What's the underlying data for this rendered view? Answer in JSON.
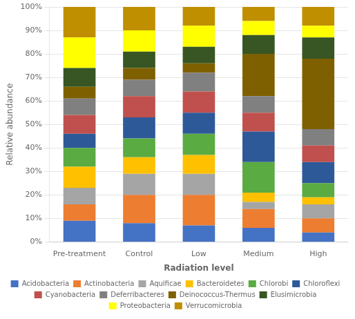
{
  "chart_data": {
    "type": "bar",
    "stacked": true,
    "categories": [
      "Pre-treatment",
      "Control",
      "Low",
      "Medium",
      "High"
    ],
    "series": [
      {
        "name": "Acidobacteria",
        "color": "#4472C4",
        "values": [
          9,
          8,
          7,
          6,
          4
        ]
      },
      {
        "name": "Actinobacteria",
        "color": "#ED7D31",
        "values": [
          7,
          12,
          13,
          8,
          6
        ]
      },
      {
        "name": "Aquificae",
        "color": "#A5A5A5",
        "values": [
          7,
          9,
          9,
          3,
          6
        ]
      },
      {
        "name": "Bacteroidetes",
        "color": "#FFC000",
        "values": [
          9,
          7,
          8,
          4,
          3
        ]
      },
      {
        "name": "Chlorobi",
        "color": "#5AAB42",
        "values": [
          8,
          8,
          9,
          13,
          6
        ]
      },
      {
        "name": "Chloroflexi",
        "color": "#2E5999",
        "values": [
          6,
          9,
          9,
          13,
          9
        ]
      },
      {
        "name": "Cyanobacteria",
        "color": "#C0504D",
        "values": [
          8,
          9,
          9,
          8,
          7
        ]
      },
      {
        "name": "Deferribacteres",
        "color": "#808080",
        "values": [
          7,
          7,
          8,
          7,
          7
        ]
      },
      {
        "name": "Deinococcus-Thermus",
        "color": "#7F6000",
        "values": [
          5,
          5,
          4,
          18,
          30
        ]
      },
      {
        "name": "Elusimicrobia",
        "color": "#375623",
        "values": [
          8,
          7,
          7,
          8,
          9
        ]
      },
      {
        "name": "Proteobacteria",
        "color": "#FFFF00",
        "values": [
          13,
          9,
          9,
          6,
          5
        ]
      },
      {
        "name": "Verrucomicrobia",
        "color": "#BF8F00",
        "values": [
          13,
          10,
          8,
          6,
          8
        ]
      }
    ],
    "xlabel": "Radiation level",
    "ylabel": "Relative abundance",
    "ylim": [
      0,
      100
    ],
    "yticks": [
      {
        "value": 0,
        "label": "0%"
      },
      {
        "value": 10,
        "label": "10%"
      },
      {
        "value": 20,
        "label": "20%"
      },
      {
        "value": 30,
        "label": "30%"
      },
      {
        "value": 40,
        "label": "40%"
      },
      {
        "value": 50,
        "label": "50%"
      },
      {
        "value": 60,
        "label": "60%"
      },
      {
        "value": 70,
        "label": "70%"
      },
      {
        "value": 80,
        "label": "80%"
      },
      {
        "value": 90,
        "label": "90%"
      },
      {
        "value": 100,
        "label": "100%"
      }
    ],
    "grid": true,
    "legend": "bottom"
  }
}
